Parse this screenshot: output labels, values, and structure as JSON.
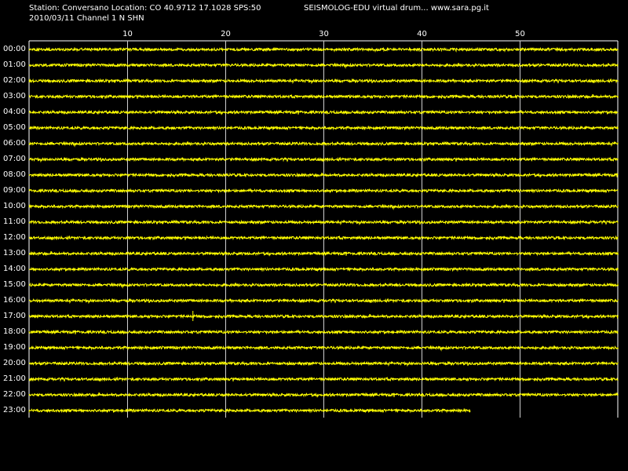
{
  "header": {
    "station_line": "Station: Conversano Location: CO 40.9712 17.1028 SPS:50",
    "date_line": "2010/03/11  Channel 1 N SHN",
    "title": "SEISMOLOG-EDU virtual drum... www.sara.pg.it"
  },
  "colors": {
    "background": "#000000",
    "trace": "#ffff00",
    "grid": "#ffffff",
    "text": "#ffffff"
  },
  "chart_data": {
    "type": "line",
    "x_unit": "minutes",
    "x_range": [
      0,
      60
    ],
    "x_ticks": [
      {
        "value": 10,
        "label": "10"
      },
      {
        "value": 20,
        "label": "20"
      },
      {
        "value": 30,
        "label": "30"
      },
      {
        "value": 40,
        "label": "40"
      },
      {
        "value": 50,
        "label": "50"
      }
    ],
    "hour_labels": [
      "00:00",
      "01:00",
      "02:00",
      "03:00",
      "04:00",
      "05:00",
      "06:00",
      "07:00",
      "08:00",
      "09:00",
      "10:00",
      "11:00",
      "12:00",
      "13:00",
      "14:00",
      "15:00",
      "16:00",
      "17:00",
      "18:00",
      "19:00",
      "20:00",
      "21:00",
      "22:00",
      "23:00"
    ],
    "last_trace_end_minute": 45,
    "event": {
      "hour": "17:00",
      "minute": 16.7
    }
  }
}
